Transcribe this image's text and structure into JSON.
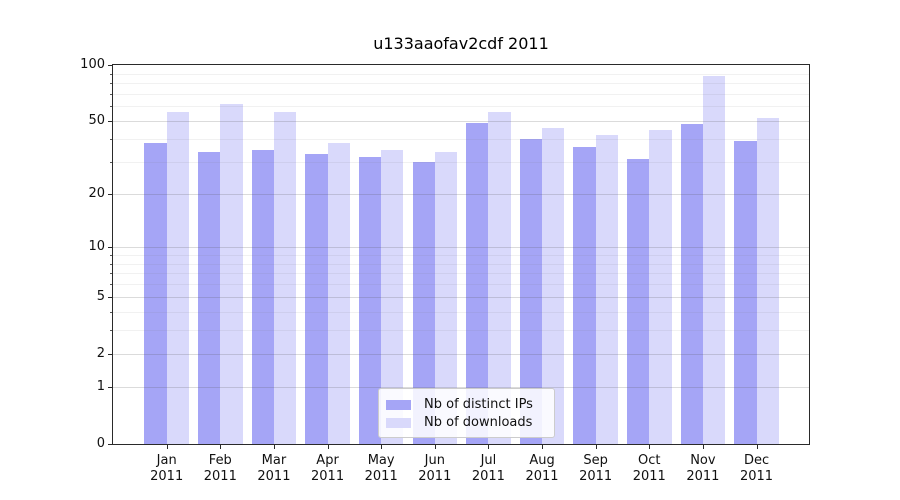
{
  "chart_data": {
    "type": "bar",
    "title": "u133aaofav2cdf 2011",
    "categories": [
      "Jan",
      "Feb",
      "Mar",
      "Apr",
      "May",
      "Jun",
      "Jul",
      "Aug",
      "Sep",
      "Oct",
      "Nov",
      "Dec"
    ],
    "x_year_label": "2011",
    "series": [
      {
        "name": "Nb of distinct IPs",
        "color": "#a5a5f6",
        "values": [
          38,
          34,
          35,
          33,
          32,
          30,
          49,
          40,
          36,
          31,
          48,
          39
        ]
      },
      {
        "name": "Nb of downloads",
        "color": "#d9d9fb",
        "values": [
          56,
          62,
          56,
          38,
          35,
          34,
          56,
          46,
          42,
          45,
          87,
          52
        ]
      }
    ],
    "ylabel": "",
    "xlabel": "",
    "ylim": [
      0,
      100
    ],
    "y_scale": "log10(value+1)",
    "y_major_ticks": [
      0,
      1,
      2,
      5,
      10,
      20,
      50,
      100
    ],
    "y_minor_gridlines": [
      3,
      4,
      6,
      7,
      8,
      9,
      30,
      40,
      60,
      70,
      80,
      90
    ],
    "grid": "on",
    "legend_position": "lower center"
  }
}
